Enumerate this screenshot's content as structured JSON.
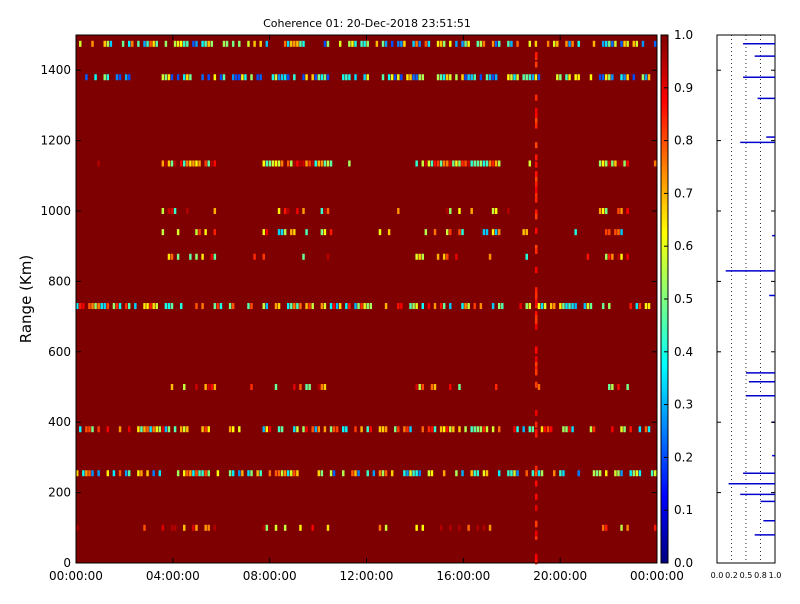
{
  "chart_data": [
    {
      "type": "heatmap",
      "title": "Coherence 01: 20-Dec-2018 23:51:51",
      "xlabel": "",
      "ylabel": "Range (Km)",
      "x_ticks": [
        "00:00:00",
        "04:00:00",
        "08:00:00",
        "12:00:00",
        "16:00:00",
        "20:00:00",
        "00:00:00"
      ],
      "y_ticks": [
        0,
        200,
        400,
        600,
        800,
        1000,
        1200,
        1400
      ],
      "y_range_km": [
        0,
        1500
      ],
      "x_range_hours": [
        0,
        24
      ],
      "colorbar_range": [
        0.0,
        1.0
      ],
      "colorbar_ticks": [
        "0.0",
        "0.1",
        "0.2",
        "0.3",
        "0.4",
        "0.5",
        "0.6",
        "0.7",
        "0.8",
        "0.9",
        "1.0"
      ],
      "colormap": [
        "#00007f",
        "#0000ff",
        "#007fff",
        "#00ffff",
        "#7fff7f",
        "#ffff00",
        "#ff7f00",
        "#ff0000",
        "#7f0000"
      ],
      "background_value": 1.0,
      "bands": [
        {
          "range_km": 1475,
          "value": 0.5,
          "density": "high"
        },
        {
          "range_km": 1380,
          "value": 0.4,
          "density": "high"
        },
        {
          "range_km": 1135,
          "value": 0.7,
          "density": "medium"
        },
        {
          "range_km": 1000,
          "value": 0.7,
          "density": "low"
        },
        {
          "range_km": 940,
          "value": 0.6,
          "density": "low"
        },
        {
          "range_km": 870,
          "value": 0.7,
          "density": "low"
        },
        {
          "range_km": 730,
          "value": 0.6,
          "density": "high"
        },
        {
          "range_km": 500,
          "value": 0.7,
          "density": "low"
        },
        {
          "range_km": 380,
          "value": 0.6,
          "density": "high"
        },
        {
          "range_km": 255,
          "value": 0.5,
          "density": "high"
        },
        {
          "range_km": 100,
          "value": 0.8,
          "density": "low"
        }
      ],
      "vertical_feature_hours": 19.0,
      "grid": false
    },
    {
      "type": "line",
      "title": "",
      "x_ticks": [
        "0.0",
        "0.2",
        "0.5",
        "0.8",
        "1.0"
      ],
      "xlim": [
        0.0,
        1.0
      ],
      "y_range_km": [
        0,
        1500
      ],
      "grid": true,
      "color": "#0000cc",
      "profile": [
        {
          "y": 1475,
          "x": 0.45
        },
        {
          "y": 1440,
          "x": 0.65
        },
        {
          "y": 1380,
          "x": 0.45
        },
        {
          "y": 1320,
          "x": 0.7
        },
        {
          "y": 1210,
          "x": 0.85
        },
        {
          "y": 1195,
          "x": 0.4
        },
        {
          "y": 930,
          "x": 0.95
        },
        {
          "y": 830,
          "x": 0.15
        },
        {
          "y": 760,
          "x": 0.9
        },
        {
          "y": 540,
          "x": 0.5
        },
        {
          "y": 515,
          "x": 0.55
        },
        {
          "y": 475,
          "x": 0.5
        },
        {
          "y": 400,
          "x": 0.95
        },
        {
          "y": 305,
          "x": 0.95
        },
        {
          "y": 255,
          "x": 0.45
        },
        {
          "y": 225,
          "x": 0.2
        },
        {
          "y": 195,
          "x": 0.4
        },
        {
          "y": 175,
          "x": 0.75
        },
        {
          "y": 120,
          "x": 0.8
        },
        {
          "y": 80,
          "x": 0.65
        }
      ]
    }
  ]
}
